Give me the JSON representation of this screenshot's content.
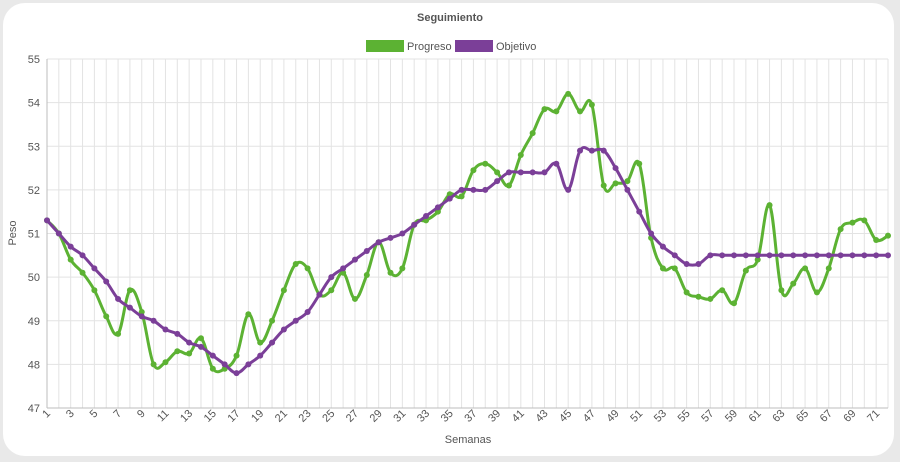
{
  "colors": {
    "progreso": "#5cb233",
    "objetivo": "#7b3f98"
  },
  "chart_data": {
    "type": "line",
    "title": "Seguimiento",
    "xlabel": "Semanas",
    "ylabel": "Peso",
    "ylim": [
      47,
      55
    ],
    "yticks": [
      47,
      48,
      49,
      50,
      51,
      52,
      53,
      54,
      55
    ],
    "xticks": [
      1,
      3,
      5,
      7,
      9,
      11,
      13,
      15,
      17,
      19,
      21,
      23,
      25,
      27,
      29,
      31,
      33,
      35,
      37,
      39,
      41,
      43,
      45,
      47,
      49,
      51,
      53,
      55,
      57,
      59,
      61,
      63,
      65,
      67,
      69,
      71
    ],
    "grid": true,
    "legend_position": "top",
    "x": [
      1,
      2,
      3,
      4,
      5,
      6,
      7,
      8,
      9,
      10,
      11,
      12,
      13,
      14,
      15,
      16,
      17,
      18,
      19,
      20,
      21,
      22,
      23,
      24,
      25,
      26,
      27,
      28,
      29,
      30,
      31,
      32,
      33,
      34,
      35,
      36,
      37,
      38,
      39,
      40,
      41,
      42,
      43,
      44,
      45,
      46,
      47,
      48,
      49,
      50,
      51,
      52,
      53,
      54,
      55,
      56,
      57,
      58,
      59,
      60,
      61,
      62,
      63,
      64,
      65,
      66,
      67,
      68,
      69,
      70,
      71,
      72
    ],
    "series": [
      {
        "name": "Progreso",
        "color": "#5cb233",
        "values": [
          51.3,
          51.0,
          50.4,
          50.1,
          49.7,
          49.1,
          48.7,
          49.7,
          49.2,
          48.0,
          48.05,
          48.3,
          48.25,
          48.6,
          47.9,
          47.9,
          48.2,
          49.15,
          48.5,
          49.0,
          49.7,
          50.3,
          50.2,
          49.6,
          49.7,
          50.1,
          49.5,
          50.05,
          50.8,
          50.1,
          50.2,
          51.2,
          51.3,
          51.5,
          51.9,
          51.85,
          52.45,
          52.6,
          52.4,
          52.1,
          52.8,
          53.3,
          53.85,
          53.8,
          54.2,
          53.8,
          53.95,
          52.1,
          52.15,
          52.2,
          52.6,
          50.9,
          50.2,
          50.2,
          49.65,
          49.55,
          49.5,
          49.7,
          49.4,
          50.15,
          50.4,
          51.65,
          49.7,
          49.85,
          50.2,
          49.65,
          50.2,
          51.1,
          51.25,
          51.3,
          50.85,
          50.95
        ]
      },
      {
        "name": "Objetivo",
        "color": "#7b3f98",
        "values": [
          51.3,
          51.0,
          50.7,
          50.5,
          50.2,
          49.9,
          49.5,
          49.3,
          49.1,
          49.0,
          48.8,
          48.7,
          48.5,
          48.4,
          48.2,
          48.0,
          47.8,
          48.0,
          48.2,
          48.5,
          48.8,
          49.0,
          49.2,
          49.6,
          50.0,
          50.2,
          50.4,
          50.6,
          50.8,
          50.9,
          51.0,
          51.2,
          51.4,
          51.6,
          51.8,
          52.0,
          52.0,
          52.0,
          52.2,
          52.4,
          52.4,
          52.4,
          52.4,
          52.6,
          52.0,
          52.9,
          52.9,
          52.9,
          52.5,
          52.0,
          51.5,
          51.0,
          50.7,
          50.5,
          50.3,
          50.3,
          50.5,
          50.5,
          50.5,
          50.5,
          50.5,
          50.5,
          50.5,
          50.5,
          50.5,
          50.5,
          50.5,
          50.5,
          50.5,
          50.5,
          50.5,
          50.5
        ]
      }
    ]
  }
}
